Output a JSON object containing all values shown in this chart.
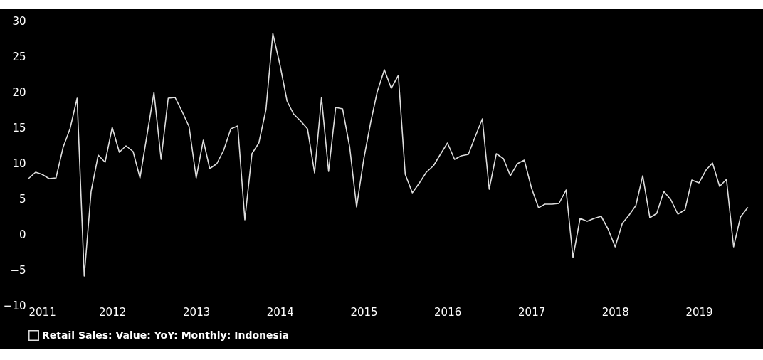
{
  "chart_data": {
    "type": "line",
    "x": [
      "2011-01",
      "2011-02",
      "2011-03",
      "2011-04",
      "2011-05",
      "2011-06",
      "2011-07",
      "2011-08",
      "2011-09",
      "2011-10",
      "2011-11",
      "2011-12",
      "2012-01",
      "2012-02",
      "2012-03",
      "2012-04",
      "2012-05",
      "2012-06",
      "2012-07",
      "2012-08",
      "2012-09",
      "2012-10",
      "2012-11",
      "2012-12",
      "2013-01",
      "2013-02",
      "2013-03",
      "2013-04",
      "2013-05",
      "2013-06",
      "2013-07",
      "2013-08",
      "2013-09",
      "2013-10",
      "2013-11",
      "2013-12",
      "2014-01",
      "2014-02",
      "2014-03",
      "2014-04",
      "2014-05",
      "2014-06",
      "2014-07",
      "2014-08",
      "2014-09",
      "2014-10",
      "2014-11",
      "2014-12",
      "2015-01",
      "2015-02",
      "2015-03",
      "2015-04",
      "2015-05",
      "2015-06",
      "2015-07",
      "2015-08",
      "2015-09",
      "2015-10",
      "2015-11",
      "2015-12",
      "2016-01",
      "2016-02",
      "2016-03",
      "2016-04",
      "2016-05",
      "2016-06",
      "2016-07",
      "2016-08",
      "2016-09",
      "2016-10",
      "2016-11",
      "2016-12",
      "2017-01",
      "2017-02",
      "2017-03",
      "2017-04",
      "2017-05",
      "2017-06",
      "2017-07",
      "2017-08",
      "2017-09",
      "2017-10",
      "2017-11",
      "2017-12",
      "2018-01",
      "2018-02",
      "2018-03",
      "2018-04",
      "2018-05",
      "2018-06",
      "2018-07",
      "2018-08",
      "2018-09",
      "2018-10",
      "2018-11",
      "2018-12",
      "2019-01",
      "2019-02",
      "2019-03",
      "2019-04",
      "2019-05",
      "2019-06",
      "2019-07",
      "2019-08"
    ],
    "series": [
      {
        "name": "Retail Sales: Value: YoY: Monthly: Indonesia",
        "color": "#dddddd",
        "values": [
          7.8,
          8.7,
          8.4,
          7.8,
          7.9,
          12.2,
          14.8,
          19.1,
          -5.9,
          6.0,
          11.1,
          10.1,
          15.0,
          11.5,
          12.4,
          11.6,
          7.9,
          14.0,
          19.9,
          10.5,
          19.1,
          19.2,
          17.2,
          15.1,
          7.9,
          13.2,
          9.2,
          9.9,
          11.8,
          14.8,
          15.2,
          2.0,
          11.3,
          12.8,
          17.5,
          28.2,
          23.8,
          18.7,
          16.9,
          15.9,
          14.8,
          8.6,
          19.2,
          8.8,
          17.8,
          17.6,
          12.2,
          3.8,
          10.5,
          15.8,
          20.0,
          23.1,
          20.5,
          22.3,
          8.4,
          5.8,
          7.2,
          8.7,
          9.6,
          11.2,
          12.8,
          10.5,
          11.0,
          11.2,
          13.7,
          16.2,
          6.3,
          11.3,
          10.6,
          8.2,
          9.9,
          10.4,
          6.5,
          3.7,
          4.2,
          4.2,
          4.3,
          6.2,
          -3.3,
          2.2,
          1.8,
          2.2,
          2.5,
          0.7,
          -1.8,
          1.5,
          2.6,
          4.0,
          8.2,
          2.3,
          2.9,
          6.0,
          4.8,
          2.8,
          3.4,
          7.6,
          7.2,
          9.0,
          10.0,
          6.7,
          7.7,
          -1.8,
          2.4,
          3.7
        ]
      }
    ],
    "xlim": [
      "2011-01",
      "2019-10"
    ],
    "xticks": [
      "2011",
      "2012",
      "2013",
      "2014",
      "2015",
      "2016",
      "2017",
      "2018",
      "2019"
    ],
    "ylim": [
      -10,
      30
    ],
    "yticks": [
      -10,
      -5,
      0,
      5,
      10,
      15,
      20,
      25,
      30
    ],
    "grid": false,
    "legend": "bottom",
    "marker": "none",
    "line_style": "solid"
  }
}
